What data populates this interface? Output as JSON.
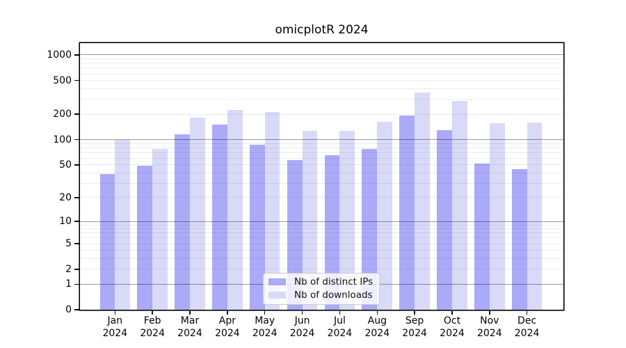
{
  "title": "omicplotR 2024",
  "legend": {
    "items": [
      {
        "label": "Nb of distinct IPs",
        "swatch": "#aaaaf8"
      },
      {
        "label": "Nb of downloads",
        "swatch": "#d9d9f8"
      }
    ]
  },
  "colors": {
    "bar_distinct_ips": "#aaaaf8",
    "bar_downloads": "#d9d9f8",
    "grid_major": "#999999",
    "grid_minor": "#ececec",
    "axis": "#000000",
    "background": "#ffffff"
  },
  "chart_data": {
    "type": "bar",
    "title": "omicplotR 2024",
    "xlabel": "",
    "ylabel": "",
    "y_scale": "log10(value+1)",
    "ylim": [
      0,
      1380
    ],
    "y_ticks": [
      0,
      1,
      2,
      5,
      10,
      20,
      50,
      100,
      200,
      500,
      1000
    ],
    "grid": {
      "major_lines": [
        1,
        10,
        100,
        1000
      ],
      "minor_lines": [
        2,
        3,
        4,
        5,
        6,
        7,
        8,
        9,
        20,
        30,
        40,
        50,
        60,
        70,
        80,
        90,
        200,
        300,
        400,
        500,
        600,
        700,
        800,
        900
      ]
    },
    "legend_position": "inside lower center",
    "categories": [
      "Jan 2024",
      "Feb 2024",
      "Mar 2024",
      "Apr 2024",
      "May 2024",
      "Jun 2024",
      "Jul 2024",
      "Aug 2024",
      "Sep 2024",
      "Oct 2024",
      "Nov 2024",
      "Dec 2024"
    ],
    "series": [
      {
        "name": "Nb of distinct IPs",
        "color": "#aaaaf8",
        "values": [
          39,
          49,
          115,
          150,
          86,
          57,
          65,
          78,
          192,
          130,
          52,
          44
        ]
      },
      {
        "name": "Nb of downloads",
        "color": "#d9d9f8",
        "values": [
          100,
          78,
          183,
          225,
          210,
          128,
          128,
          162,
          358,
          288,
          157,
          160
        ]
      }
    ]
  }
}
